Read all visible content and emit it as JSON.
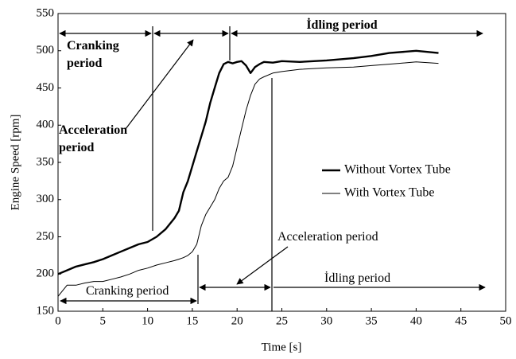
{
  "chart_data": {
    "type": "line",
    "x_label": "Time [s]",
    "y_label": "Engine Speed [rpm]",
    "x": [
      0,
      1,
      2,
      3,
      4,
      5,
      6,
      7,
      8,
      9,
      10,
      11,
      12,
      13,
      13.5,
      14,
      14.5,
      15,
      15.5,
      16,
      16.5,
      17,
      17.5,
      18,
      18.5,
      19,
      19.5,
      20,
      20.5,
      21,
      21.5,
      22,
      22.5,
      23,
      24,
      25,
      27,
      30,
      33,
      35,
      37,
      40,
      42.5
    ],
    "series": [
      {
        "name": "Without Vortex Tube",
        "color": "#000000",
        "values": [
          200,
          205,
          210,
          213,
          216,
          220,
          225,
          230,
          235,
          240,
          243,
          250,
          260,
          275,
          285,
          310,
          325,
          345,
          365,
          385,
          405,
          430,
          450,
          470,
          482,
          485,
          483,
          485,
          486,
          480,
          470,
          478,
          482,
          485,
          484,
          486,
          485,
          487,
          490,
          493,
          497,
          500,
          497
        ]
      },
      {
        "name": "With Vortex Tube",
        "color": "#000000",
        "values": [
          170,
          185,
          185,
          188,
          190,
          190,
          193,
          196,
          200,
          205,
          208,
          212,
          215,
          218,
          220,
          222,
          225,
          230,
          240,
          265,
          280,
          290,
          300,
          315,
          325,
          330,
          345,
          370,
          395,
          420,
          440,
          455,
          462,
          465,
          470,
          472,
          475,
          477,
          478,
          480,
          482,
          485,
          483
        ]
      }
    ],
    "xlim": [
      0,
      50
    ],
    "xticks": [
      0,
      5,
      10,
      15,
      20,
      25,
      30,
      35,
      40,
      45,
      50
    ],
    "ylim": [
      150,
      550
    ],
    "yticks": [
      150,
      200,
      250,
      300,
      350,
      400,
      450,
      500,
      550
    ],
    "grid": false,
    "annotations": [
      "Cranking period",
      "Acceleration period",
      "İdling period",
      "Cranking period",
      "Acceleration period",
      "İdling period"
    ]
  }
}
